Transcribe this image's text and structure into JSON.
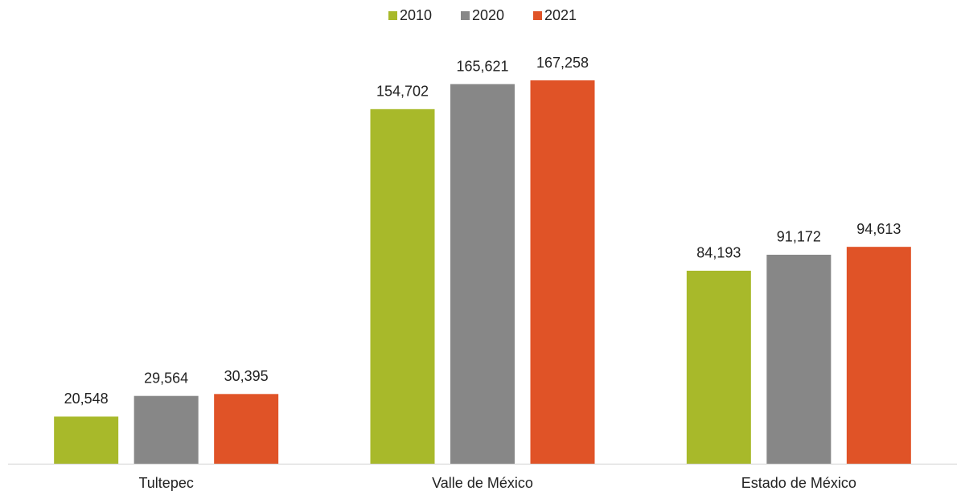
{
  "chart_data": {
    "type": "bar",
    "categories": [
      "Tultepec",
      "Valle de México",
      "Estado de México"
    ],
    "series": [
      {
        "name": "2010",
        "color": "#a8b92a",
        "values": [
          20548,
          154702,
          84193
        ],
        "value_labels": [
          "20,548",
          "154,702",
          "84,193"
        ]
      },
      {
        "name": "2020",
        "color": "#878787",
        "values": [
          29564,
          165621,
          91172
        ],
        "value_labels": [
          "29,564",
          "165,621",
          "91,172"
        ]
      },
      {
        "name": "2021",
        "color": "#e05327",
        "values": [
          30395,
          167258,
          94613
        ],
        "value_labels": [
          "30,395",
          "167,258",
          "94,613"
        ]
      }
    ],
    "legend": "top"
  }
}
